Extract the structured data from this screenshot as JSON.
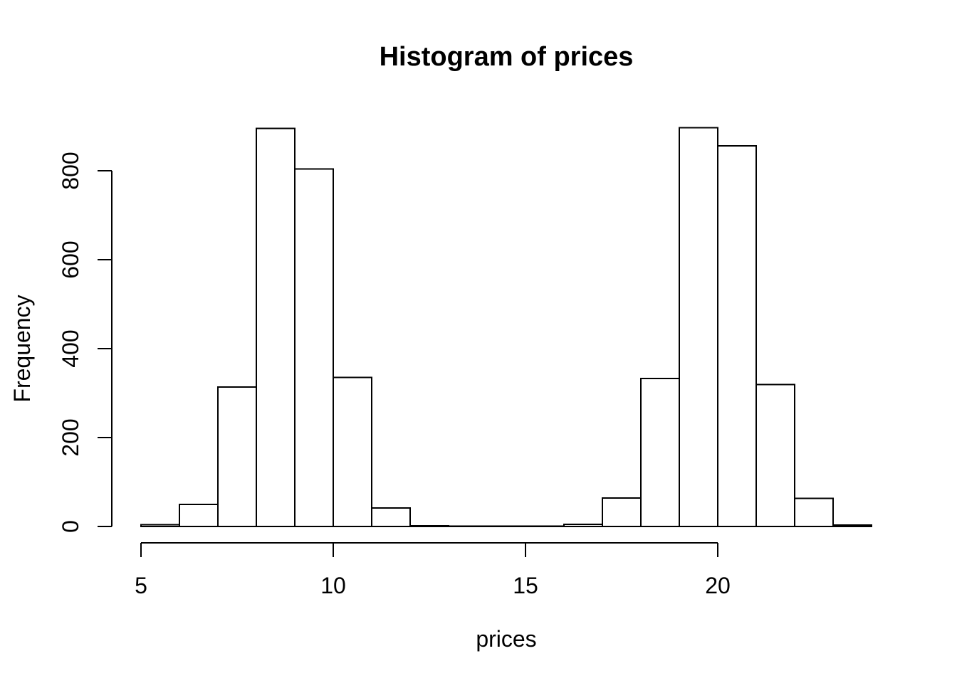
{
  "colors": {
    "background": "#ffffff",
    "foreground": "#000000",
    "bar_fill": "#ffffff",
    "bar_stroke": "#000000"
  },
  "chart_data": {
    "type": "bar",
    "subtype": "histogram",
    "title": "Histogram of prices",
    "xlabel": "prices",
    "ylabel": "Frequency",
    "x_ticks": [
      5,
      10,
      15,
      20
    ],
    "y_ticks": [
      0,
      200,
      400,
      600,
      800
    ],
    "xlim": [
      5,
      24
    ],
    "ylim": [
      0,
      900
    ],
    "grid": false,
    "legend": false,
    "bin_width": 1,
    "bin_starts": [
      5,
      6,
      7,
      8,
      9,
      10,
      11,
      12,
      13,
      14,
      15,
      16,
      17,
      18,
      19,
      20,
      21,
      22,
      23
    ],
    "counts": [
      4,
      50,
      314,
      895,
      804,
      335,
      42,
      2,
      1,
      1,
      1,
      5,
      64,
      333,
      897,
      856,
      319,
      63,
      3
    ]
  }
}
